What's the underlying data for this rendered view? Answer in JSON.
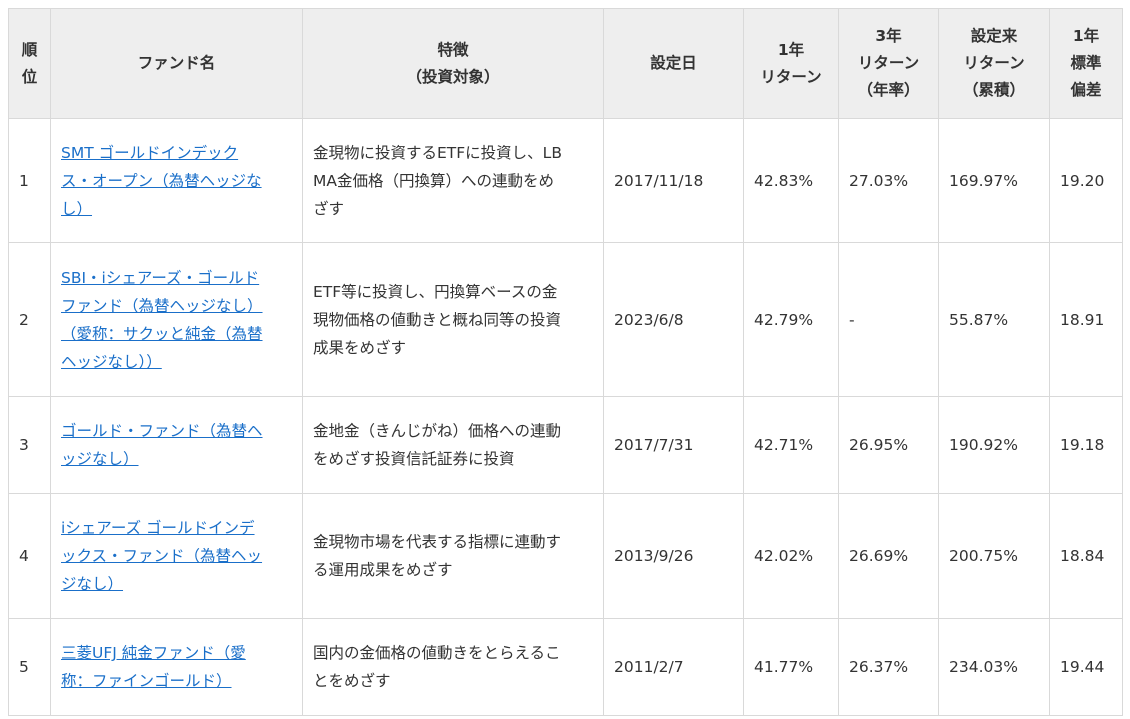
{
  "headers": {
    "rank": "順\n位",
    "fund_name": "ファンド名",
    "feature": "特徴\n（投資対象）",
    "inception": "設定日",
    "return_1y": "1年\nリターン",
    "return_3y": "3年\nリターン\n（年率）",
    "return_since": "設定来\nリターン\n（累積）",
    "stdev_1y": "1年\n標準\n偏差"
  },
  "rows": [
    {
      "rank": "1",
      "fund_name": "SMT ゴールドインデック\nス・オープン（為替ヘッジな\nし）",
      "feature": "金現物に投資するETFに投資し、LB\nMA金価格（円換算）への連動をめ\nざす",
      "inception": "2017/11/18",
      "return_1y": "42.83%",
      "return_3y": "27.03%",
      "return_since": "169.97%",
      "stdev_1y": "19.20"
    },
    {
      "rank": "2",
      "fund_name": "SBI・iシェアーズ・ゴールド\nファンド（為替ヘッジなし）\n（愛称：サクッと純金（為替\nヘッジなし））",
      "feature": "ETF等に投資し、円換算ベースの金\n現物価格の値動きと概ね同等の投資\n成果をめざす",
      "inception": "2023/6/8",
      "return_1y": "42.79%",
      "return_3y": "-",
      "return_since": "55.87%",
      "stdev_1y": "18.91"
    },
    {
      "rank": "3",
      "fund_name": "ゴールド・ファンド（為替ヘ\nッジなし）",
      "feature": "金地金（きんじがね）価格への連動\nをめざす投資信託証券に投資",
      "inception": "2017/7/31",
      "return_1y": "42.71%",
      "return_3y": "26.95%",
      "return_since": "190.92%",
      "stdev_1y": "19.18"
    },
    {
      "rank": "4",
      "fund_name": "iシェアーズ ゴールドインデ\nックス・ファンド（為替ヘッ\nジなし）",
      "feature": "金現物市場を代表する指標に連動す\nる運用成果をめざす",
      "inception": "2013/9/26",
      "return_1y": "42.02%",
      "return_3y": "26.69%",
      "return_since": "200.75%",
      "stdev_1y": "18.84"
    },
    {
      "rank": "5",
      "fund_name": "三菱UFJ 純金ファンド（愛\n称：ファインゴールド）",
      "feature": "国内の金価格の値動きをとらえるこ\nとをめざす",
      "inception": "2011/2/7",
      "return_1y": "41.77%",
      "return_3y": "26.37%",
      "return_since": "234.03%",
      "stdev_1y": "19.44"
    }
  ],
  "colors": {
    "link": "#1a6fc9",
    "header_bg": "#eeeeee",
    "border": "#d9d9d9",
    "text": "#333333"
  }
}
